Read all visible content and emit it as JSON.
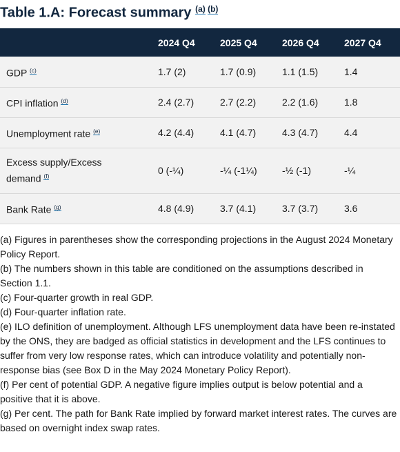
{
  "header": {
    "title": "Table 1.A: Forecast summary",
    "notes": [
      "(a)",
      "(b)"
    ]
  },
  "table": {
    "columns": [
      "2024 Q4",
      "2025 Q4",
      "2026 Q4",
      "2027 Q4"
    ],
    "rows": [
      {
        "label": "GDP",
        "note": "(c)",
        "values": [
          "1.7 (2)",
          "1.7 (0.9)",
          "1.1 (1.5)",
          "1.4"
        ]
      },
      {
        "label": "CPI inflation",
        "note": "(d)",
        "values": [
          "2.4 (2.7)",
          "2.7 (2.2)",
          "2.2 (1.6)",
          "1.8"
        ]
      },
      {
        "label": "Unemployment rate",
        "note": "(e)",
        "values": [
          "4.2 (4.4)",
          "4.1 (4.7)",
          "4.3 (4.7)",
          "4.4"
        ]
      },
      {
        "label": "Excess supply/Excess demand",
        "note": "(f)",
        "values": [
          "0 (-¼)",
          "-¼ (-1¼)",
          "-½ (-1)",
          "-¼"
        ]
      },
      {
        "label": "Bank Rate",
        "note": "(g)",
        "values": [
          "4.8 (4.9)",
          "3.7 (4.1)",
          "3.7 (3.7)",
          "3.6"
        ]
      }
    ]
  },
  "footnotes": [
    "(a) Figures in parentheses show the corresponding projections in the August 2024 Monetary Policy Report.",
    "(b) The numbers shown in this table are conditioned on the assumptions described in Section 1.1.",
    "(c) Four-quarter growth in real GDP.",
    "(d) Four-quarter inflation rate.",
    "(e) ILO definition of unemployment. Although LFS unemployment data have been re-instated by the ONS, they are badged as official statistics in development and the LFS continues to suffer from very low response rates, which can introduce volatility and potentially non-response bias (see Box D in the May 2024 Monetary Policy Report).",
    "(f) Per cent of potential GDP. A negative figure implies output is below potential and a positive that it is above.",
    "(g) Per cent. The path for Bank Rate implied by forward market interest rates. The curves are based on overnight index swap rates."
  ]
}
